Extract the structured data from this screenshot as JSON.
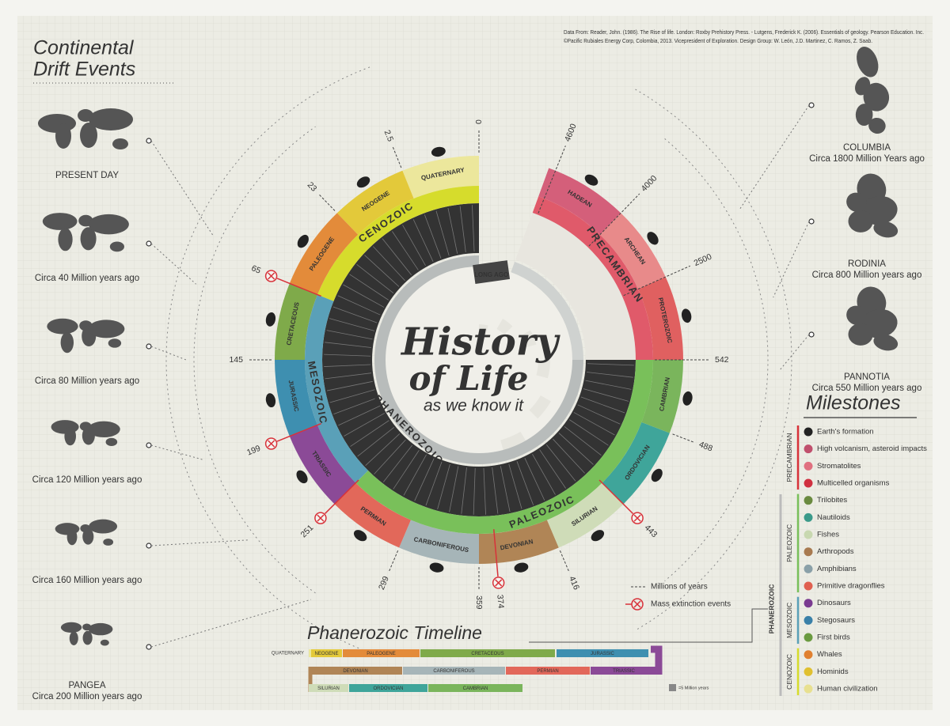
{
  "credits": [
    "Data From: Reader, John. (1986). The Rise of life. London: Roxby Prehistory Press. - Lutgens, Frederick K. (2006). Essentials of geology. Pearson Education. Inc.",
    "©Pacific Rubiales Energy Corp, Colombia, 2013. Vicepresident of Exploration. Design Group: W. León, J.D. Martinez, C. Ramos, Z. Saab."
  ],
  "drift": {
    "title": [
      "Continental",
      "Drift Events"
    ],
    "recent": [
      [
        "PRESENT DAY"
      ],
      [
        "Circa 40 Million years ago"
      ],
      [
        "Circa 80 Million years ago"
      ],
      [
        "Circa 120 Million years ago"
      ],
      [
        "Circa 160 Million years ago"
      ],
      [
        "PANGEA",
        "Circa 200 Million years ago"
      ]
    ],
    "ancient": [
      [
        "COLUMBIA",
        "Circa 1800 Million Years ago"
      ],
      [
        "RODINIA",
        "Circa 800 Million years ago"
      ],
      [
        "PANNOTIA",
        "Circa 550 Million years ago"
      ]
    ]
  },
  "wheel": {
    "title": [
      "History",
      "of Life"
    ],
    "subtitle": "as we know it",
    "eon": "PHANEROZOIC",
    "start": "LONG AGO",
    "eras": [
      "CENOZOIC",
      "MESOZOIC",
      "PALEOZOIC",
      "PRECAMBRIAN"
    ],
    "periods": [
      "QUATERNARY",
      "NEOGENE",
      "PALEOGENE",
      "CRETACEOUS",
      "JURASSIC",
      "TRIASSIC",
      "PERMIAN",
      "CARBONIFEROUS",
      "DEVONIAN",
      "SILURIAN",
      "ORDOVICIAN",
      "CAMBRIAN",
      "PROTEROZOIC",
      "ARCHEAN",
      "HADEAN"
    ],
    "years": [
      0,
      2.5,
      23,
      145,
      299,
      359,
      416,
      488,
      542,
      2500,
      4000,
      4600
    ],
    "extinctions": [
      65,
      199,
      251,
      374,
      443
    ]
  },
  "legend": [
    "Millions of years",
    "Mass extinction events"
  ],
  "milestones": {
    "title": "Milestones",
    "eon": "PHANEROZOIC",
    "groups": [
      {
        "name": "PRECAMBRIAN",
        "items": [
          "Earth's formation",
          "High volcanism, asteroid impacts",
          "Stromatolites",
          "Multicelled organisms"
        ]
      },
      {
        "name": "PALEOZOIC",
        "items": [
          "Trilobites",
          "Nautiloids",
          "Fishes",
          "Arthropods",
          "Amphibians",
          "Primitive dragonflies"
        ]
      },
      {
        "name": "MESOZOIC",
        "items": [
          "Dinosaurs",
          "Stegosaurs",
          "First birds"
        ]
      },
      {
        "name": "CENOZOIC",
        "items": [
          "Whales",
          "Hominids",
          "Human civilization"
        ]
      }
    ]
  },
  "timeline": {
    "title": "Phanerozoic Timeline",
    "rows": [
      [
        "QUATERNARY",
        "NEOGENE",
        "PALEOGENE",
        "CRETACEOUS",
        "JURASSIC"
      ],
      [
        "DEVONIAN",
        "CARBONIFEROUS",
        "PERMIAN",
        "TRIASSIC"
      ],
      [
        "SILURIAN",
        "ORDOVICIAN",
        "CAMBRIAN"
      ]
    ],
    "scale": "=5 Million years"
  }
}
